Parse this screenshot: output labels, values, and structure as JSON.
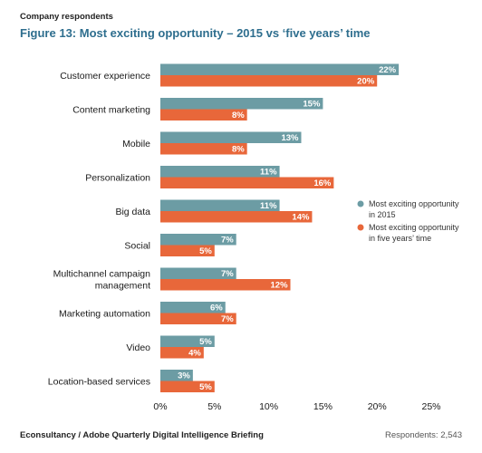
{
  "header": {
    "supertitle": "Company respondents",
    "title": "Figure 13: Most exciting opportunity – 2015 vs ‘five years’ time"
  },
  "footer": {
    "source": "Econsultancy / Adobe Quarterly Digital Intelligence Briefing",
    "respondents": "Respondents: 2,543"
  },
  "chart_data": {
    "type": "bar",
    "orientation": "horizontal",
    "categories": [
      [
        "Customer experience"
      ],
      [
        "Content marketing"
      ],
      [
        "Mobile"
      ],
      [
        "Personalization"
      ],
      [
        "Big data"
      ],
      [
        "Social"
      ],
      [
        "Multichannel campaign",
        "management"
      ],
      [
        "Marketing automation"
      ],
      [
        "Video"
      ],
      [
        "Location-based services"
      ]
    ],
    "series": [
      {
        "name": "Most exciting opportunity in 2015",
        "legend_lines": [
          "Most exciting opportunity",
          "in 2015"
        ],
        "color": "#6c9ca4",
        "values": [
          22,
          15,
          13,
          11,
          11,
          7,
          7,
          6,
          5,
          3
        ]
      },
      {
        "name": "Most exciting opportunity in five years’ time",
        "legend_lines": [
          "Most exciting opportunity",
          "in five years’ time"
        ],
        "color": "#e8673a",
        "values": [
          20,
          8,
          8,
          16,
          14,
          5,
          12,
          7,
          4,
          5
        ]
      }
    ],
    "xlim": [
      0,
      25
    ],
    "xticks": [
      "0%",
      "5%",
      "10%",
      "15%",
      "20%",
      "25%"
    ],
    "value_suffix": "%",
    "legend_position": "right",
    "grid": false
  }
}
